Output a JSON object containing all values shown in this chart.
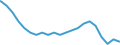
{
  "x": [
    0,
    1,
    2,
    3,
    4,
    5,
    6,
    7,
    8,
    9,
    10,
    11,
    12,
    13,
    14,
    15,
    16,
    17,
    18,
    19,
    20
  ],
  "y": [
    28,
    26,
    23,
    19,
    16,
    14,
    13,
    14,
    13,
    14,
    13,
    14,
    15,
    16,
    18,
    19,
    17,
    12,
    9,
    11,
    10
  ],
  "line_color": "#3d9ed0",
  "linewidth": 1.4,
  "bg_color": "#ffffff"
}
